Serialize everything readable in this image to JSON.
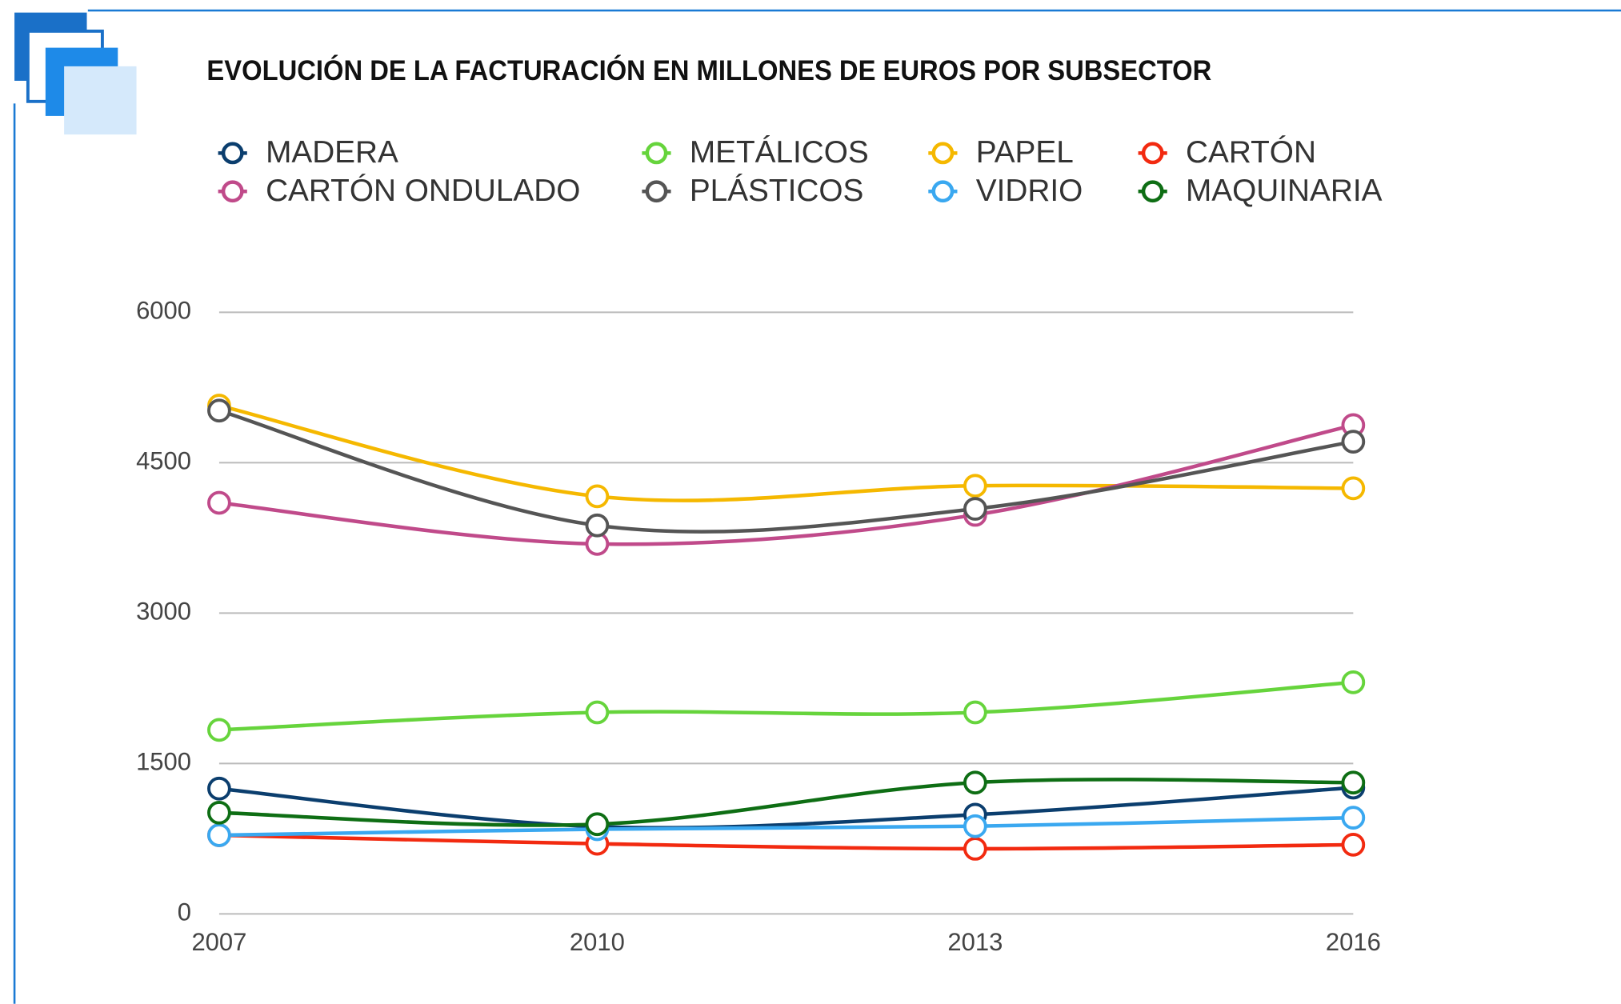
{
  "chart_data": {
    "type": "line",
    "title": "EVOLUCIÓN DE LA FACTURACIÓN EN MILLONES DE EUROS POR SUBSECTOR",
    "categories": [
      "2007",
      "2010",
      "2013",
      "2016"
    ],
    "series": [
      {
        "name": "MADERA",
        "color": "#0b3e6e",
        "values": [
          1250,
          870,
          990,
          1260
        ]
      },
      {
        "name": "METÁLICOS",
        "color": "#66d43c",
        "values": [
          1835,
          2010,
          2010,
          2310
        ]
      },
      {
        "name": "PAPEL",
        "color": "#f5b800",
        "values": [
          5070,
          4165,
          4270,
          4245
        ]
      },
      {
        "name": "CARTÓN",
        "color": "#f22a10",
        "values": [
          785,
          700,
          650,
          690
        ]
      },
      {
        "name": "CARTÓN ONDULADO",
        "color": "#c04a8a",
        "values": [
          4100,
          3690,
          3980,
          4875
        ]
      },
      {
        "name": "PLÁSTICOS",
        "color": "#555555",
        "values": [
          5020,
          3875,
          4040,
          4710
        ]
      },
      {
        "name": "VIDRIO",
        "color": "#3aa8f0",
        "values": [
          785,
          845,
          875,
          960
        ]
      },
      {
        "name": "MAQUINARIA",
        "color": "#0e6e14",
        "values": [
          1010,
          895,
          1310,
          1310
        ]
      }
    ],
    "ylim": [
      0,
      6000
    ],
    "yticks": [
      0,
      1500,
      3000,
      4500,
      6000
    ],
    "grid": true
  }
}
